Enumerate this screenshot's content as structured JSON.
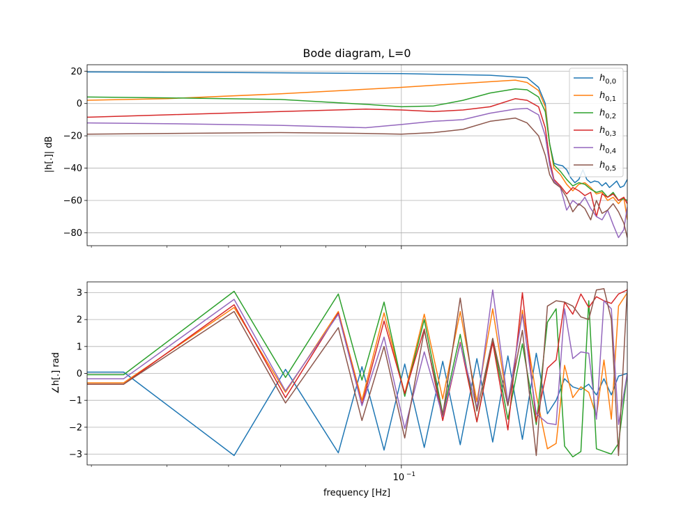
{
  "chart_data": [
    {
      "type": "line",
      "title": "Bode diagram, L=0",
      "xlabel": "",
      "ylabel": "|h[.]| dB",
      "xscale": "log",
      "xlim": [
        0.0395,
        0.195
      ],
      "ylim": [
        -88,
        24
      ],
      "yticks": [
        -80,
        -60,
        -40,
        -20,
        0,
        20
      ],
      "ytick_labels": [
        "−80",
        "−60",
        "−40",
        "−20",
        "0",
        "20"
      ],
      "grid": true,
      "legend_position": "top-right",
      "legend": [
        "h_{0,0}",
        "h_{0,1}",
        "h_{0,2}",
        "h_{0,3}",
        "h_{0,4}",
        "h_{0,5}"
      ],
      "series": [
        {
          "name": "h_{0,0}",
          "color": "#1f77b4",
          "x": [
            0.0395,
            0.05,
            0.07,
            0.1,
            0.13,
            0.145,
            0.15,
            0.153,
            0.155,
            0.157,
            0.159,
            0.161,
            0.163,
            0.165,
            0.167,
            0.169,
            0.171,
            0.173,
            0.175,
            0.177,
            0.179,
            0.181,
            0.183,
            0.185,
            0.187,
            0.189,
            0.191,
            0.193,
            0.195
          ],
          "y": [
            19.5,
            19.4,
            19.0,
            18.5,
            17.5,
            16.0,
            10.0,
            0.0,
            -25.0,
            -37.0,
            -38.0,
            -38.5,
            -41.0,
            -46.0,
            -49.0,
            -47.0,
            -41.0,
            -47.0,
            -49.0,
            -48.0,
            -48.5,
            -51.0,
            -49.0,
            -52.0,
            -50.0,
            -48.0,
            -52.0,
            -51.0,
            -47.0
          ]
        },
        {
          "name": "h_{0,1}",
          "color": "#ff7f0e",
          "x": [
            0.0395,
            0.05,
            0.07,
            0.1,
            0.13,
            0.14,
            0.145,
            0.15,
            0.153,
            0.155,
            0.157,
            0.16,
            0.163,
            0.166,
            0.169,
            0.172,
            0.175,
            0.178,
            0.181,
            0.184,
            0.187,
            0.19,
            0.193,
            0.195
          ],
          "y": [
            2.0,
            3.0,
            6.0,
            10.0,
            13.5,
            14.5,
            13.0,
            8.0,
            -2.0,
            -25.0,
            -40.0,
            -44.0,
            -50.0,
            -54.0,
            -50.0,
            -49.0,
            -52.0,
            -56.0,
            -55.0,
            -60.0,
            -58.0,
            -62.0,
            -58.0,
            -72.0
          ]
        },
        {
          "name": "h_{0,2}",
          "color": "#2ca02c",
          "x": [
            0.0395,
            0.05,
            0.07,
            0.09,
            0.1,
            0.11,
            0.12,
            0.13,
            0.14,
            0.145,
            0.15,
            0.153,
            0.155,
            0.157,
            0.16,
            0.163,
            0.166,
            0.169,
            0.172,
            0.175,
            0.178,
            0.181,
            0.184,
            0.187,
            0.19,
            0.193,
            0.195
          ],
          "y": [
            4.0,
            3.5,
            2.5,
            -0.5,
            -2.0,
            -1.5,
            2.0,
            6.5,
            9.0,
            8.5,
            4.0,
            -5.0,
            -25.0,
            -38.0,
            -42.0,
            -47.0,
            -51.0,
            -49.0,
            -50.0,
            -53.0,
            -55.0,
            -54.0,
            -58.0,
            -55.0,
            -60.0,
            -59.0,
            -60.0
          ]
        },
        {
          "name": "h_{0,3}",
          "color": "#d62728",
          "x": [
            0.0395,
            0.05,
            0.07,
            0.09,
            0.1,
            0.11,
            0.12,
            0.13,
            0.14,
            0.145,
            0.15,
            0.153,
            0.155,
            0.157,
            0.16,
            0.163,
            0.166,
            0.169,
            0.172,
            0.175,
            0.178,
            0.181,
            0.184,
            0.187,
            0.19,
            0.193,
            0.195
          ],
          "y": [
            -8.5,
            -7.0,
            -5.0,
            -3.5,
            -4.0,
            -5.0,
            -4.0,
            -2.0,
            3.0,
            2.0,
            -2.0,
            -15.0,
            -35.0,
            -47.0,
            -51.0,
            -56.0,
            -52.0,
            -54.0,
            -57.0,
            -55.0,
            -70.0,
            -56.0,
            -58.0,
            -56.0,
            -60.0,
            -58.0,
            -62.0
          ]
        },
        {
          "name": "h_{0,4}",
          "color": "#9467bd",
          "x": [
            0.0395,
            0.05,
            0.07,
            0.09,
            0.1,
            0.11,
            0.12,
            0.13,
            0.14,
            0.145,
            0.15,
            0.153,
            0.155,
            0.157,
            0.16,
            0.163,
            0.166,
            0.169,
            0.172,
            0.175,
            0.178,
            0.181,
            0.184,
            0.187,
            0.19,
            0.193,
            0.195
          ],
          "y": [
            -12.0,
            -12.5,
            -13.5,
            -15.0,
            -13.0,
            -11.0,
            -10.0,
            -6.0,
            -3.5,
            -3.0,
            -7.0,
            -20.0,
            -38.0,
            -48.0,
            -52.0,
            -66.0,
            -60.0,
            -63.0,
            -58.0,
            -65.0,
            -70.0,
            -72.0,
            -66.0,
            -75.0,
            -83.0,
            -78.0,
            -64.0
          ]
        },
        {
          "name": "h_{0,5}",
          "color": "#8c564b",
          "x": [
            0.0395,
            0.05,
            0.07,
            0.09,
            0.1,
            0.11,
            0.12,
            0.13,
            0.14,
            0.145,
            0.15,
            0.153,
            0.155,
            0.157,
            0.16,
            0.163,
            0.166,
            0.169,
            0.172,
            0.175,
            0.178,
            0.181,
            0.184,
            0.187,
            0.19,
            0.193,
            0.195
          ],
          "y": [
            -19.0,
            -18.5,
            -18.0,
            -18.5,
            -19.0,
            -18.0,
            -16.0,
            -11.0,
            -9.0,
            -12.0,
            -20.0,
            -32.0,
            -44.0,
            -49.0,
            -52.0,
            -58.0,
            -67.0,
            -62.0,
            -65.0,
            -72.0,
            -60.0,
            -68.0,
            -66.0,
            -62.0,
            -67.0,
            -74.0,
            -83.0
          ]
        }
      ]
    },
    {
      "type": "line",
      "title": "",
      "xlabel": "frequency [Hz]",
      "ylabel": "∠h[.] rad",
      "xscale": "log",
      "xlim": [
        0.0395,
        0.195
      ],
      "ylim": [
        -3.4,
        3.4
      ],
      "yticks": [
        -3,
        -2,
        -1,
        0,
        1,
        2,
        3
      ],
      "ytick_labels": [
        "−3",
        "−2",
        "−1",
        "0",
        "1",
        "2",
        "3"
      ],
      "xtick_major": 0.1,
      "xtick_major_label": "10",
      "xtick_major_exponent": "−1",
      "xtick_minor": [
        0.04,
        0.05,
        0.06,
        0.07,
        0.08,
        0.09,
        0.2
      ],
      "grid": true,
      "series": [
        {
          "name": "h_{0,0}",
          "color": "#1f77b4",
          "x": [
            0.0395,
            0.044,
            0.061,
            0.071,
            0.083,
            0.089,
            0.095,
            0.101,
            0.107,
            0.113,
            0.119,
            0.125,
            0.131,
            0.137,
            0.143,
            0.149,
            0.154,
            0.158,
            0.162,
            0.166,
            0.17,
            0.174,
            0.178,
            0.182,
            0.186,
            0.19,
            0.195
          ],
          "y": [
            0.05,
            0.05,
            -3.05,
            0.15,
            -2.95,
            0.25,
            -2.85,
            0.35,
            -2.75,
            0.45,
            -2.65,
            0.55,
            -2.55,
            0.65,
            -2.45,
            0.75,
            -1.5,
            -1.0,
            -0.2,
            -0.5,
            -0.6,
            -0.4,
            -0.8,
            -0.2,
            -0.8,
            -0.1,
            0.0
          ]
        },
        {
          "name": "h_{0,1}",
          "color": "#ff7f0e",
          "x": [
            0.0395,
            0.044,
            0.061,
            0.071,
            0.083,
            0.089,
            0.095,
            0.101,
            0.107,
            0.113,
            0.119,
            0.125,
            0.131,
            0.137,
            0.143,
            0.149,
            0.154,
            0.158,
            0.162,
            0.166,
            0.17,
            0.174,
            0.178,
            0.182,
            0.186,
            0.19,
            0.195
          ],
          "y": [
            -0.35,
            -0.35,
            2.45,
            -0.7,
            2.3,
            -1.0,
            2.25,
            -0.75,
            2.2,
            -0.95,
            2.3,
            -1.05,
            2.4,
            -1.2,
            2.35,
            -0.8,
            -2.8,
            -2.6,
            0.3,
            -0.9,
            -0.5,
            -0.7,
            -1.6,
            0.5,
            -1.7,
            2.5,
            3.0
          ]
        },
        {
          "name": "h_{0,2}",
          "color": "#2ca02c",
          "x": [
            0.0395,
            0.044,
            0.061,
            0.071,
            0.083,
            0.089,
            0.095,
            0.101,
            0.107,
            0.113,
            0.119,
            0.125,
            0.131,
            0.137,
            0.143,
            0.149,
            0.154,
            0.158,
            0.162,
            0.166,
            0.17,
            0.174,
            0.178,
            0.182,
            0.186,
            0.19,
            0.195
          ],
          "y": [
            -0.05,
            -0.05,
            3.05,
            -0.15,
            2.95,
            -0.25,
            2.65,
            -0.85,
            2.0,
            -1.5,
            1.45,
            -1.8,
            1.3,
            -1.7,
            1.1,
            -1.9,
            1.9,
            2.4,
            -2.7,
            -3.1,
            -2.9,
            2.7,
            -2.8,
            -2.9,
            -3.0,
            -2.6,
            0.0
          ]
        },
        {
          "name": "h_{0,3}",
          "color": "#d62728",
          "x": [
            0.0395,
            0.044,
            0.061,
            0.071,
            0.083,
            0.089,
            0.095,
            0.101,
            0.107,
            0.113,
            0.119,
            0.125,
            0.131,
            0.137,
            0.143,
            0.149,
            0.154,
            0.158,
            0.162,
            0.166,
            0.17,
            0.174,
            0.178,
            0.182,
            0.186,
            0.19,
            0.195
          ],
          "y": [
            -0.4,
            -0.4,
            2.55,
            -0.9,
            2.25,
            -1.15,
            1.95,
            -0.75,
            1.65,
            -1.75,
            1.15,
            -1.8,
            1.15,
            -2.1,
            3.0,
            -1.8,
            0.2,
            0.5,
            2.65,
            2.2,
            2.95,
            2.45,
            2.85,
            2.7,
            2.6,
            2.95,
            3.1
          ]
        },
        {
          "name": "h_{0,4}",
          "color": "#9467bd",
          "x": [
            0.0395,
            0.044,
            0.061,
            0.071,
            0.083,
            0.089,
            0.095,
            0.101,
            0.107,
            0.113,
            0.119,
            0.125,
            0.131,
            0.137,
            0.143,
            0.149,
            0.154,
            0.158,
            0.162,
            0.166,
            0.17,
            0.174,
            0.178,
            0.182,
            0.186,
            0.19,
            0.195
          ],
          "y": [
            -0.2,
            -0.2,
            2.75,
            -0.65,
            2.2,
            -1.2,
            1.35,
            -2.05,
            0.8,
            -1.6,
            1.1,
            -1.3,
            3.1,
            -1.1,
            2.2,
            -1.5,
            -1.85,
            -1.9,
            2.4,
            0.55,
            0.8,
            0.75,
            -1.7,
            2.7,
            2.4,
            -1.9,
            0.0
          ]
        },
        {
          "name": "h_{0,5}",
          "color": "#8c564b",
          "x": [
            0.0395,
            0.044,
            0.061,
            0.071,
            0.083,
            0.089,
            0.095,
            0.101,
            0.107,
            0.113,
            0.119,
            0.125,
            0.131,
            0.137,
            0.143,
            0.149,
            0.154,
            0.158,
            0.162,
            0.166,
            0.17,
            0.174,
            0.178,
            0.182,
            0.186,
            0.19,
            0.195
          ],
          "y": [
            -0.4,
            -0.4,
            2.3,
            -1.1,
            1.7,
            -1.75,
            1.0,
            -2.4,
            1.6,
            -1.55,
            2.8,
            -1.4,
            1.3,
            -1.2,
            1.6,
            -3.05,
            2.5,
            2.7,
            2.65,
            2.5,
            2.1,
            2.0,
            3.1,
            3.15,
            2.0,
            -3.05,
            3.15
          ]
        }
      ]
    }
  ]
}
